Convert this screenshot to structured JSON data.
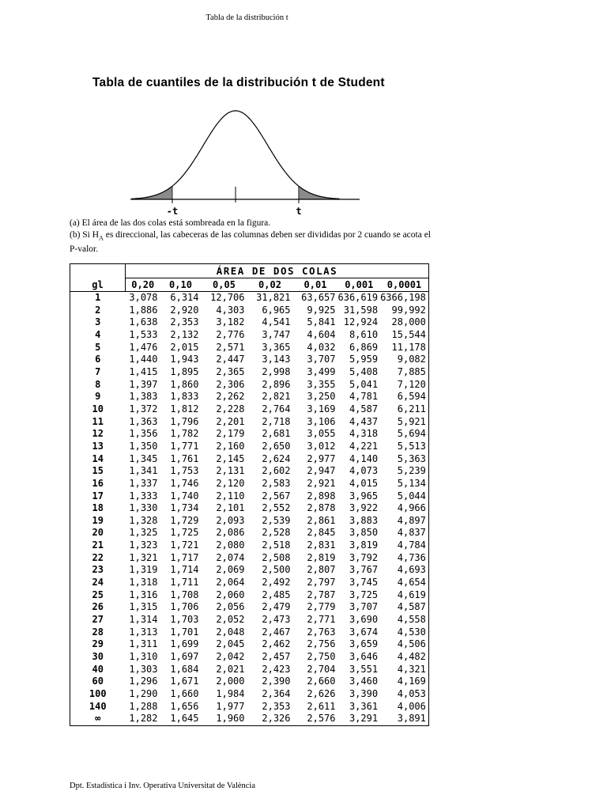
{
  "page": {
    "running_header": "Tabla de la distribución t",
    "title": "Tabla de cuantiles de la distribución t de Student",
    "footer": "Dpt. Estadística i Inv. Operativa Universitat de València"
  },
  "figure": {
    "left_label": "-t",
    "right_label": "t",
    "shade_color": "#8a8a8a"
  },
  "notes": {
    "a": "(a) El área de las dos colas está sombreada en la figura.",
    "b_pre": "(b) Si H",
    "b_sub": "A",
    "b_post": " es direccional, las cabeceras de las columnas deben ser divididas por 2 cuando se acota el P-valor."
  },
  "table": {
    "spanner": "ÁREA DE DOS COLAS",
    "row_header": "gl",
    "columns": [
      "0,20",
      "0,10",
      "0,05",
      "0,02",
      "0,01",
      "0,001",
      "0,0001"
    ],
    "rows": [
      {
        "gl": "1",
        "values": [
          "3,078",
          "6,314",
          "12,706",
          "31,821",
          "63,657",
          "636,619",
          "6366,198"
        ]
      },
      {
        "gl": "2",
        "values": [
          "1,886",
          "2,920",
          "4,303",
          "6,965",
          "9,925",
          "31,598",
          "99,992"
        ]
      },
      {
        "gl": "3",
        "values": [
          "1,638",
          "2,353",
          "3,182",
          "4,541",
          "5,841",
          "12,924",
          "28,000"
        ]
      },
      {
        "gl": "4",
        "values": [
          "1,533",
          "2,132",
          "2,776",
          "3,747",
          "4,604",
          "8,610",
          "15,544"
        ]
      },
      {
        "gl": "5",
        "values": [
          "1,476",
          "2,015",
          "2,571",
          "3,365",
          "4,032",
          "6,869",
          "11,178"
        ]
      },
      {
        "gl": "6",
        "values": [
          "1,440",
          "1,943",
          "2,447",
          "3,143",
          "3,707",
          "5,959",
          "9,082"
        ]
      },
      {
        "gl": "7",
        "values": [
          "1,415",
          "1,895",
          "2,365",
          "2,998",
          "3,499",
          "5,408",
          "7,885"
        ]
      },
      {
        "gl": "8",
        "values": [
          "1,397",
          "1,860",
          "2,306",
          "2,896",
          "3,355",
          "5,041",
          "7,120"
        ]
      },
      {
        "gl": "9",
        "values": [
          "1,383",
          "1,833",
          "2,262",
          "2,821",
          "3,250",
          "4,781",
          "6,594"
        ]
      },
      {
        "gl": "10",
        "values": [
          "1,372",
          "1,812",
          "2,228",
          "2,764",
          "3,169",
          "4,587",
          "6,211"
        ]
      },
      {
        "gl": "11",
        "values": [
          "1,363",
          "1,796",
          "2,201",
          "2,718",
          "3,106",
          "4,437",
          "5,921"
        ]
      },
      {
        "gl": "12",
        "values": [
          "1,356",
          "1,782",
          "2,179",
          "2,681",
          "3,055",
          "4,318",
          "5,694"
        ]
      },
      {
        "gl": "13",
        "values": [
          "1,350",
          "1,771",
          "2,160",
          "2,650",
          "3,012",
          "4,221",
          "5,513"
        ]
      },
      {
        "gl": "14",
        "values": [
          "1,345",
          "1,761",
          "2,145",
          "2,624",
          "2,977",
          "4,140",
          "5,363"
        ]
      },
      {
        "gl": "15",
        "values": [
          "1,341",
          "1,753",
          "2,131",
          "2,602",
          "2,947",
          "4,073",
          "5,239"
        ]
      },
      {
        "gl": "16",
        "values": [
          "1,337",
          "1,746",
          "2,120",
          "2,583",
          "2,921",
          "4,015",
          "5,134"
        ]
      },
      {
        "gl": "17",
        "values": [
          "1,333",
          "1,740",
          "2,110",
          "2,567",
          "2,898",
          "3,965",
          "5,044"
        ]
      },
      {
        "gl": "18",
        "values": [
          "1,330",
          "1,734",
          "2,101",
          "2,552",
          "2,878",
          "3,922",
          "4,966"
        ]
      },
      {
        "gl": "19",
        "values": [
          "1,328",
          "1,729",
          "2,093",
          "2,539",
          "2,861",
          "3,883",
          "4,897"
        ]
      },
      {
        "gl": "20",
        "values": [
          "1,325",
          "1,725",
          "2,086",
          "2,528",
          "2,845",
          "3,850",
          "4,837"
        ]
      },
      {
        "gl": "21",
        "values": [
          "1,323",
          "1,721",
          "2,080",
          "2,518",
          "2,831",
          "3,819",
          "4,784"
        ]
      },
      {
        "gl": "22",
        "values": [
          "1,321",
          "1,717",
          "2,074",
          "2,508",
          "2,819",
          "3,792",
          "4,736"
        ]
      },
      {
        "gl": "23",
        "values": [
          "1,319",
          "1,714",
          "2,069",
          "2,500",
          "2,807",
          "3,767",
          "4,693"
        ]
      },
      {
        "gl": "24",
        "values": [
          "1,318",
          "1,711",
          "2,064",
          "2,492",
          "2,797",
          "3,745",
          "4,654"
        ]
      },
      {
        "gl": "25",
        "values": [
          "1,316",
          "1,708",
          "2,060",
          "2,485",
          "2,787",
          "3,725",
          "4,619"
        ]
      },
      {
        "gl": "26",
        "values": [
          "1,315",
          "1,706",
          "2,056",
          "2,479",
          "2,779",
          "3,707",
          "4,587"
        ]
      },
      {
        "gl": "27",
        "values": [
          "1,314",
          "1,703",
          "2,052",
          "2,473",
          "2,771",
          "3,690",
          "4,558"
        ]
      },
      {
        "gl": "28",
        "values": [
          "1,313",
          "1,701",
          "2,048",
          "2,467",
          "2,763",
          "3,674",
          "4,530"
        ]
      },
      {
        "gl": "29",
        "values": [
          "1,311",
          "1,699",
          "2,045",
          "2,462",
          "2,756",
          "3,659",
          "4,506"
        ]
      },
      {
        "gl": "30",
        "values": [
          "1,310",
          "1,697",
          "2,042",
          "2,457",
          "2,750",
          "3,646",
          "4,482"
        ]
      },
      {
        "gl": "40",
        "values": [
          "1,303",
          "1,684",
          "2,021",
          "2,423",
          "2,704",
          "3,551",
          "4,321"
        ]
      },
      {
        "gl": "60",
        "values": [
          "1,296",
          "1,671",
          "2,000",
          "2,390",
          "2,660",
          "3,460",
          "4,169"
        ]
      },
      {
        "gl": "100",
        "values": [
          "1,290",
          "1,660",
          "1,984",
          "2,364",
          "2,626",
          "3,390",
          "4,053"
        ]
      },
      {
        "gl": "140",
        "values": [
          "1,288",
          "1,656",
          "1,977",
          "2,353",
          "2,611",
          "3,361",
          "4,006"
        ]
      },
      {
        "gl": "∞",
        "values": [
          "1,282",
          "1,645",
          "1,960",
          "2,326",
          "2,576",
          "3,291",
          "3,891"
        ]
      }
    ]
  }
}
